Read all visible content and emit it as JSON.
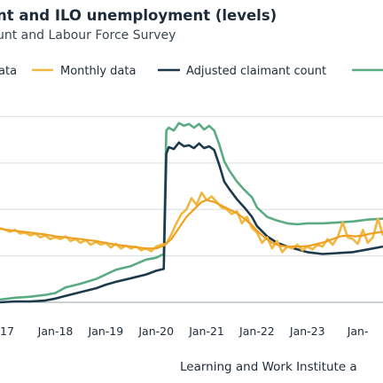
{
  "chart_data": {
    "type": "line",
    "title": "nt and ILO unemployment (levels)",
    "subtitle": "unt and Labour Force Survey",
    "source": "Learning and Work Institute a",
    "legend": [
      {
        "name": "ata",
        "color": "#f0b840"
      },
      {
        "name": "Monthly data",
        "color": "#f0b840"
      },
      {
        "name": "Adjusted claimant count",
        "color": "#1d3a4d"
      },
      {
        "name": "",
        "color": "#5aab84"
      }
    ],
    "x_ticks": [
      "17",
      "Jan-18",
      "Jan-19",
      "Jan-20",
      "Jan-21",
      "Jan-22",
      "Jan-23",
      "Jan-"
    ],
    "ylim": [
      0,
      230
    ],
    "x_range": [
      2016.9,
      2024.5
    ],
    "grid": "horizontal",
    "series": [
      {
        "name": "",
        "color": "#5aab84",
        "x": [
          2016.9,
          2017.2,
          2017.5,
          2017.8,
          2018.0,
          2018.2,
          2018.5,
          2018.8,
          2019.0,
          2019.2,
          2019.5,
          2019.8,
          2020.0,
          2020.15,
          2020.2,
          2020.25,
          2020.35,
          2020.45,
          2020.55,
          2020.65,
          2020.75,
          2020.85,
          2020.95,
          2021.05,
          2021.15,
          2021.25,
          2021.35,
          2021.45,
          2021.6,
          2021.75,
          2021.9,
          2022.0,
          2022.2,
          2022.4,
          2022.6,
          2022.8,
          2023.0,
          2023.3,
          2023.6,
          2023.9,
          2024.2,
          2024.5
        ],
        "values": [
          3,
          5,
          6,
          8,
          10,
          16,
          20,
          25,
          30,
          35,
          39,
          46,
          48,
          52,
          185,
          188,
          185,
          193,
          190,
          192,
          188,
          192,
          186,
          190,
          185,
          170,
          152,
          142,
          130,
          121,
          113,
          102,
          92,
          88,
          85,
          84,
          85,
          85,
          86,
          87,
          89,
          90
        ]
      },
      {
        "name": "Adjusted claimant count",
        "color": "#1d3a4d",
        "x": [
          2016.9,
          2017.2,
          2017.5,
          2017.8,
          2018.0,
          2018.2,
          2018.5,
          2018.8,
          2019.0,
          2019.2,
          2019.5,
          2019.8,
          2020.0,
          2020.15,
          2020.2,
          2020.25,
          2020.35,
          2020.45,
          2020.55,
          2020.65,
          2020.75,
          2020.85,
          2020.95,
          2021.05,
          2021.15,
          2021.25,
          2021.35,
          2021.45,
          2021.6,
          2021.75,
          2021.9,
          2022.0,
          2022.2,
          2022.4,
          2022.6,
          2022.8,
          2023.0,
          2023.3,
          2023.6,
          2023.9,
          2024.2,
          2024.5
        ],
        "values": [
          0,
          1,
          1,
          2,
          4,
          7,
          11,
          15,
          19,
          22,
          26,
          30,
          34,
          36,
          160,
          167,
          165,
          172,
          168,
          169,
          166,
          171,
          166,
          168,
          164,
          148,
          130,
          122,
          111,
          102,
          92,
          82,
          71,
          64,
          60,
          57,
          54,
          52,
          53,
          54,
          57,
          60
        ]
      },
      {
        "name": "Monthly data",
        "color": "#f0b840",
        "x": [
          2016.9,
          2017.0,
          2017.1,
          2017.2,
          2017.3,
          2017.4,
          2017.5,
          2017.6,
          2017.7,
          2017.8,
          2017.9,
          2018.0,
          2018.1,
          2018.2,
          2018.3,
          2018.4,
          2018.5,
          2018.6,
          2018.7,
          2018.8,
          2018.9,
          2019.0,
          2019.1,
          2019.2,
          2019.3,
          2019.4,
          2019.5,
          2019.6,
          2019.7,
          2019.8,
          2019.9,
          2020.0,
          2020.1,
          2020.2,
          2020.3,
          2020.4,
          2020.5,
          2020.6,
          2020.7,
          2020.8,
          2020.9,
          2021.0,
          2021.1,
          2021.2,
          2021.3,
          2021.4,
          2021.5,
          2021.6,
          2021.7,
          2021.8,
          2021.9,
          2022.0,
          2022.1,
          2022.2,
          2022.3,
          2022.4,
          2022.5,
          2022.6,
          2022.7,
          2022.8,
          2022.9,
          2023.0,
          2023.1,
          2023.2,
          2023.3,
          2023.4,
          2023.5,
          2023.6,
          2023.7,
          2023.8,
          2023.9,
          2024.0,
          2024.1,
          2024.2,
          2024.3,
          2024.4,
          2024.5
        ],
        "values": [
          80,
          78,
          76,
          78,
          74,
          75,
          72,
          74,
          70,
          72,
          68,
          70,
          68,
          71,
          66,
          68,
          64,
          67,
          62,
          65,
          62,
          64,
          59,
          63,
          58,
          61,
          58,
          60,
          56,
          58,
          55,
          60,
          62,
          63,
          73,
          85,
          95,
          100,
          112,
          105,
          118,
          110,
          114,
          108,
          102,
          100,
          95,
          98,
          85,
          92,
          80,
          75,
          64,
          70,
          58,
          66,
          54,
          60,
          58,
          62,
          56,
          60,
          57,
          62,
          60,
          68,
          62,
          70,
          86,
          70,
          68,
          63,
          78,
          64,
          70,
          90,
          72
        ]
      },
      {
        "name": "ata",
        "color": "#f0a020",
        "x": [
          2016.9,
          2017.2,
          2017.5,
          2017.8,
          2018.0,
          2018.2,
          2018.5,
          2018.8,
          2019.0,
          2019.2,
          2019.5,
          2019.8,
          2020.0,
          2020.15,
          2020.3,
          2020.45,
          2020.6,
          2020.75,
          2020.9,
          2021.0,
          2021.15,
          2021.3,
          2021.45,
          2021.6,
          2021.75,
          2021.9,
          2022.0,
          2022.15,
          2022.3,
          2022.45,
          2022.6,
          2022.75,
          2022.9,
          2023.05,
          2023.2,
          2023.35,
          2023.5,
          2023.65,
          2023.8,
          2023.95,
          2024.1,
          2024.25,
          2024.5
        ],
        "values": [
          79,
          77,
          75,
          73,
          71,
          70,
          68,
          66,
          64,
          62,
          60,
          58,
          58,
          61,
          68,
          80,
          92,
          100,
          108,
          110,
          108,
          104,
          100,
          96,
          90,
          83,
          77,
          70,
          64,
          61,
          60,
          60,
          60,
          61,
          63,
          65,
          68,
          71,
          72,
          71,
          72,
          74,
          76
        ]
      }
    ]
  }
}
